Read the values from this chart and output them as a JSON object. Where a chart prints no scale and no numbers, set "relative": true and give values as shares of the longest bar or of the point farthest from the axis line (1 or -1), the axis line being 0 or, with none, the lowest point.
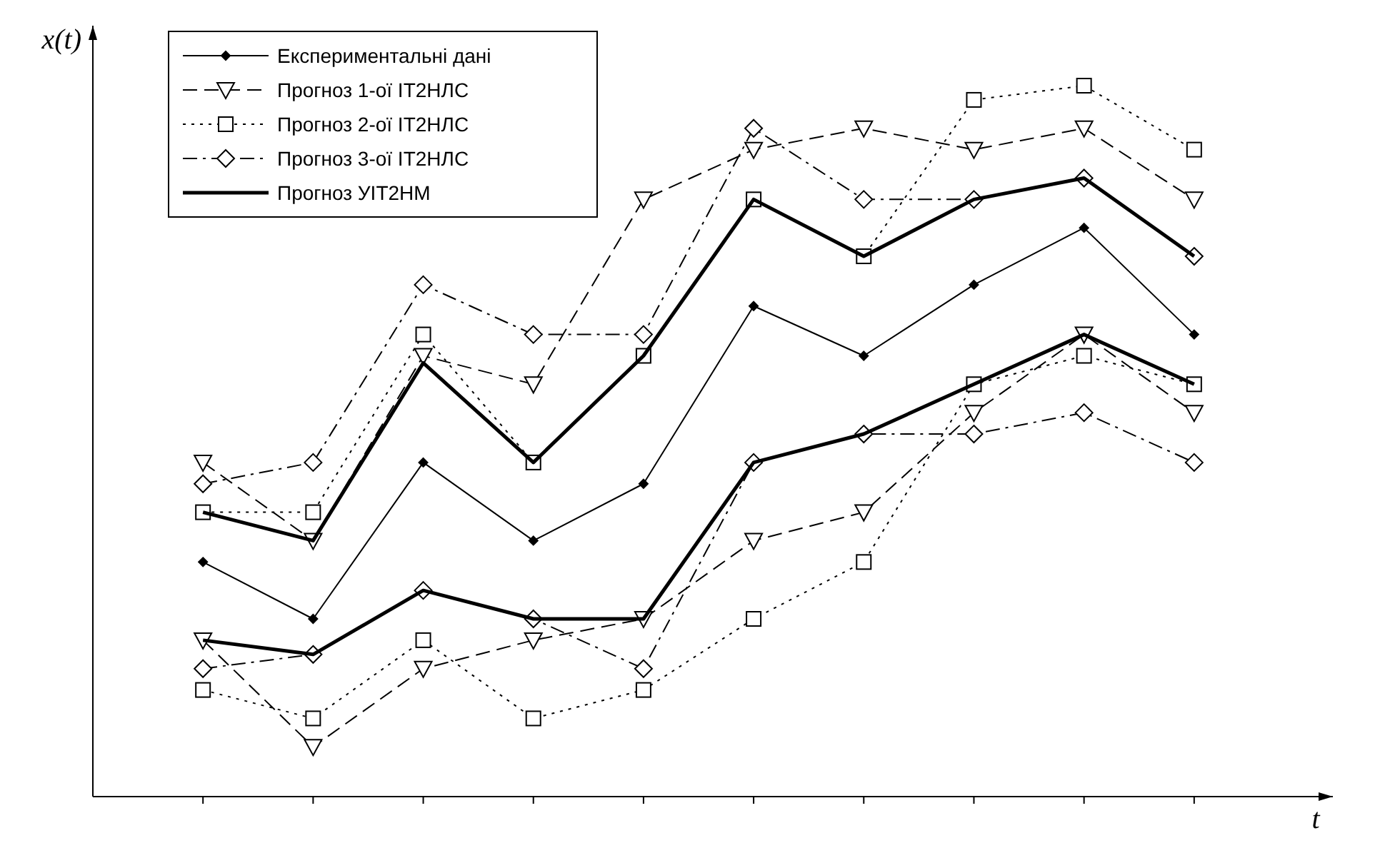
{
  "chart_data": {
    "type": "line",
    "relative": true,
    "xlabel": "t",
    "ylabel": "x(t)",
    "legend": "top left",
    "categories": [
      null,
      null,
      null,
      null,
      null,
      null,
      null,
      null,
      null,
      null
    ],
    "series": [
      {
        "name": "Експериментальні дані",
        "color": "#000000",
        "marker": "diamond",
        "line_style": "solid",
        "values": [
          0.33,
          0.25,
          0.47,
          0.36,
          0.44,
          0.69,
          0.62,
          0.72,
          0.8,
          0.65
        ]
      },
      {
        "name": "Прогноз 1-ої IT2НЛС",
        "color": "#000000",
        "marker": "triangle",
        "line_style": "dashed",
        "values": [
          0.47,
          0.36,
          0.62,
          0.58,
          0.84,
          0.91,
          0.94,
          0.91,
          0.94,
          0.84
        ]
      },
      {
        "color": "#000000",
        "marker": "triangle",
        "line_style": "dashed",
        "values": [
          0.22,
          0.07,
          0.18,
          0.22,
          0.25,
          0.36,
          0.4,
          0.54,
          0.65,
          0.54
        ]
      },
      {
        "name": "Прогноз 2-ої IT2НЛС",
        "color": "#000000",
        "marker": "square",
        "line_style": "dotted",
        "values": [
          0.4,
          0.4,
          0.65,
          0.47,
          0.62,
          0.84,
          0.76,
          0.98,
          1,
          0.91
        ]
      },
      {
        "color": "#000000",
        "marker": "square",
        "line_style": "dotted",
        "values": [
          0.15,
          0.11,
          0.22,
          0.11,
          0.15,
          0.25,
          0.33,
          0.58,
          0.62,
          0.58
        ]
      },
      {
        "name": "Прогноз 3-ої IT2НЛС",
        "color": "#000000",
        "marker": "diamond",
        "line_style": "dashdot",
        "values": [
          0.44,
          0.47,
          0.72,
          0.65,
          0.65,
          0.94,
          0.84,
          0.84,
          0.87,
          0.76
        ]
      },
      {
        "color": "#000000",
        "marker": "diamond",
        "line_style": "dashdot",
        "values": [
          0.18,
          0.2,
          0.29,
          0.25,
          0.18,
          0.47,
          0.51,
          0.51,
          0.54,
          0.47
        ]
      },
      {
        "name": "Прогноз УІТ2НМ",
        "color": "#000000",
        "marker": "none",
        "line_style": "solid",
        "values": [
          0.4,
          0.36,
          0.61,
          0.47,
          0.62,
          0.84,
          0.76,
          0.84,
          0.87,
          0.76
        ]
      },
      {
        "color": "#000000",
        "marker": "none",
        "line_style": "solid",
        "values": [
          0.22,
          0.2,
          0.29,
          0.25,
          0.25,
          0.47,
          0.51,
          0.58,
          0.65,
          0.58
        ]
      }
    ]
  }
}
